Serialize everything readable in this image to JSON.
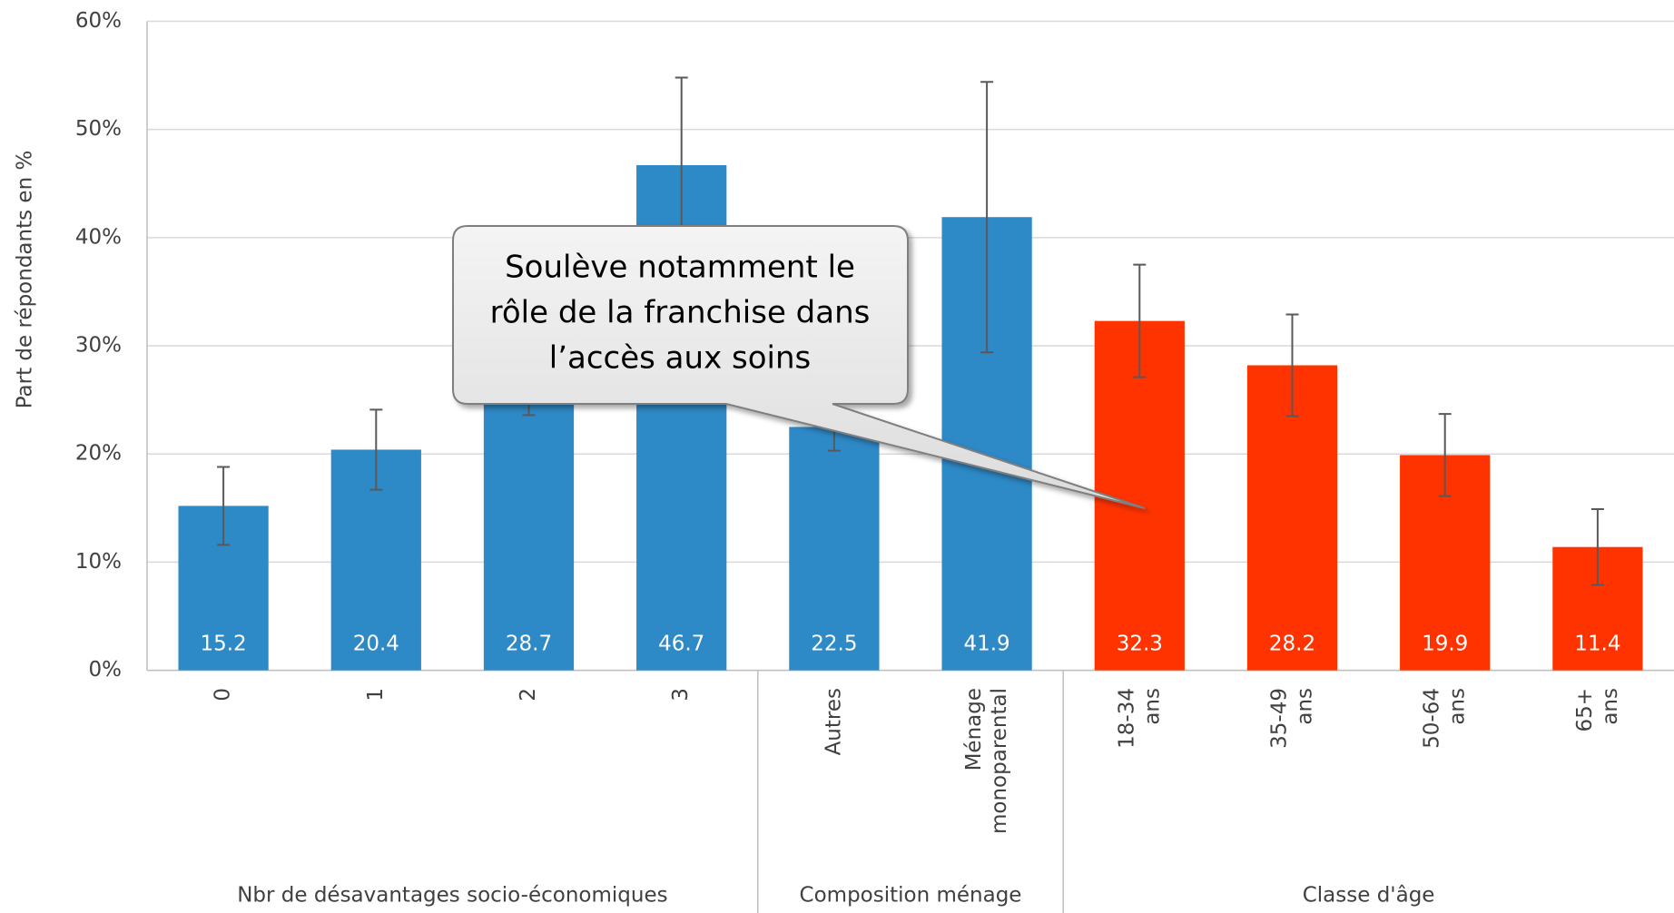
{
  "chart_data": {
    "type": "bar",
    "y_label": "Part de répondants en %",
    "categories": [
      "0",
      "1",
      "2",
      "3",
      "Autres",
      "Ménage monoparental",
      "18-34 ans",
      "35-49 ans",
      "50-64 ans",
      "65+ ans"
    ],
    "values": [
      15.2,
      20.4,
      28.7,
      46.7,
      22.5,
      41.9,
      32.3,
      28.2,
      19.9,
      11.4
    ],
    "errors": [
      3.6,
      3.7,
      5.1,
      8.1,
      2.2,
      12.5,
      5.2,
      4.7,
      3.8,
      3.5
    ],
    "colors": [
      "#2e89c7",
      "#2e89c7",
      "#2e89c7",
      "#2e89c7",
      "#2e89c7",
      "#2e89c7",
      "#ff3300",
      "#ff3300",
      "#ff3300",
      "#ff3300"
    ],
    "groups": [
      {
        "label": "Nbr de désavantages socio-économiques",
        "size": 4
      },
      {
        "label": "Composition ménage",
        "size": 2
      },
      {
        "label": "Classe d'âge",
        "size": 4
      }
    ],
    "ylim": [
      0,
      60
    ],
    "yticks": [
      {
        "value": 0,
        "label": "0%"
      },
      {
        "value": 10,
        "label": "10%"
      },
      {
        "value": 20,
        "label": "20%"
      },
      {
        "value": 30,
        "label": "30%"
      },
      {
        "value": 40,
        "label": "40%"
      },
      {
        "value": 50,
        "label": "50%"
      },
      {
        "value": 60,
        "label": "60%"
      }
    ],
    "grid": true,
    "annotation": {
      "lines": [
        "Soulève notamment le",
        "rôle de la franchise dans",
        "l’accès aux soins"
      ]
    }
  }
}
